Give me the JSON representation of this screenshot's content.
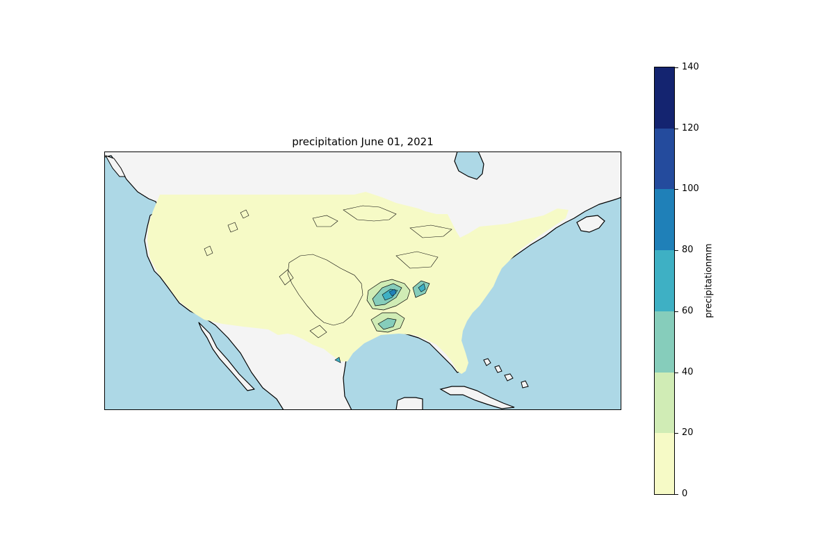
{
  "map": {
    "title": "precipitation June 01, 2021",
    "colors": {
      "ocean": "#add8e6",
      "land": "#f4f4f4",
      "coastline": "#000000",
      "contour_line": "#000000"
    }
  },
  "colorbar": {
    "label": "precipitationmm",
    "min": 0,
    "max": 140,
    "ticks": [
      "0",
      "20",
      "40",
      "60",
      "80",
      "100",
      "120",
      "140"
    ],
    "bins": [
      {
        "from": 0,
        "to": 20,
        "color": "#f6fac6"
      },
      {
        "from": 20,
        "to": 40,
        "color": "#d0ecb5"
      },
      {
        "from": 40,
        "to": 60,
        "color": "#86cdbb"
      },
      {
        "from": 60,
        "to": 80,
        "color": "#3eb0c4"
      },
      {
        "from": 80,
        "to": 100,
        "color": "#1f80b8"
      },
      {
        "from": 100,
        "to": 120,
        "color": "#244b9d"
      },
      {
        "from": 120,
        "to": 140,
        "color": "#142470"
      }
    ]
  }
}
